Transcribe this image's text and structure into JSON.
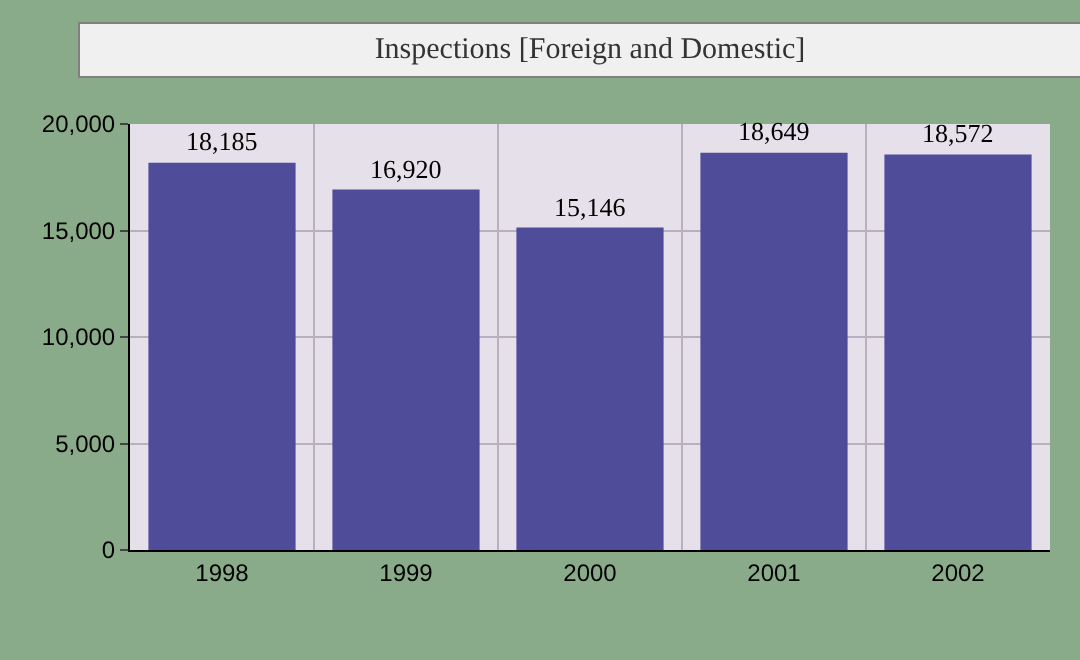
{
  "chart_data": {
    "type": "bar",
    "title": "Inspections [Foreign and Domestic]",
    "categories": [
      "1998",
      "1999",
      "2000",
      "2001",
      "2002"
    ],
    "values": [
      18185,
      16920,
      15146,
      18649,
      18572
    ],
    "color": "#4f4c9a",
    "ylim": [
      0,
      20000
    ],
    "yticks": [
      {
        "value": 0,
        "label": "0"
      },
      {
        "value": 5000,
        "label": "5,000"
      },
      {
        "value": 10000,
        "label": "10,000"
      },
      {
        "value": 15000,
        "label": "15,000"
      },
      {
        "value": 20000,
        "label": "20,000"
      }
    ],
    "grid": true,
    "value_labels": [
      "18,185",
      "16,920",
      "15,146",
      "18,649",
      "18,572"
    ]
  }
}
